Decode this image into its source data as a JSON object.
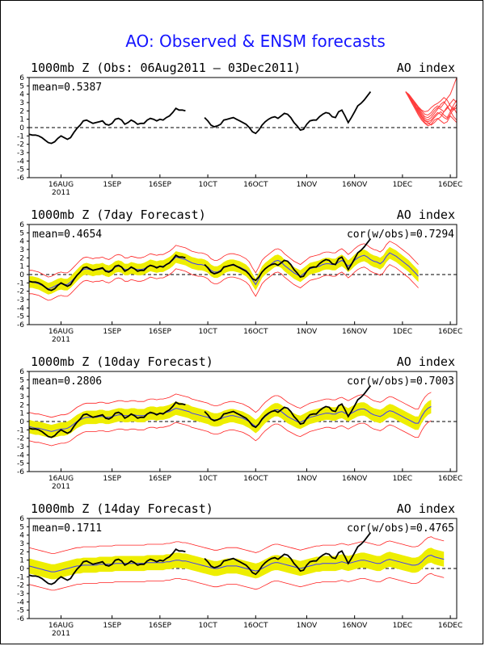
{
  "title": "AO: Observed & ENSM forecasts",
  "x_tick_labels": [
    "16AUG",
    "1SEP",
    "16SEP",
    "10CT",
    "16OCT",
    "1NOV",
    "16NOV",
    "1DEC",
    "16DEC"
  ],
  "year_label": "2011",
  "y_tick_labels": [
    "6",
    "5",
    "4",
    "3",
    "2",
    "1",
    "0",
    "-1",
    "-2",
    "-3",
    "-4",
    "-5",
    "-6"
  ],
  "chart_data": [
    {
      "type": "line",
      "header_left": "1000mb Z (Obs: 06Aug2011 – 03Dec2011)",
      "header_right": "AO index",
      "mean_label": "mean=0.5387",
      "corr_label": "",
      "ylim": [
        -6,
        6
      ],
      "x_day_range": [
        0,
        134
      ],
      "observed_day_start": 0,
      "observed": [
        -0.8,
        -0.9,
        -0.9,
        -1.0,
        -1.2,
        -1.5,
        -1.8,
        -1.9,
        -1.7,
        -1.3,
        -1.0,
        -1.2,
        -1.4,
        -1.2,
        -0.6,
        -0.1,
        0.3,
        0.8,
        0.9,
        0.7,
        0.5,
        0.6,
        0.7,
        0.8,
        0.4,
        0.3,
        0.5,
        1.0,
        1.1,
        0.9,
        0.4,
        0.6,
        0.9,
        0.7,
        0.4,
        0.5,
        0.5,
        0.9,
        1.1,
        1.0,
        0.8,
        1.0,
        0.9,
        1.2,
        1.4,
        1.8,
        2.3,
        2.1,
        2.1,
        2.0,
        null,
        null,
        null,
        null,
        null,
        1.2,
        0.8,
        0.3,
        0.1,
        0.2,
        0.4,
        0.9,
        1.0,
        1.1,
        1.2,
        1.0,
        0.8,
        0.6,
        0.4,
        0.0,
        -0.5,
        -0.7,
        -0.3,
        0.3,
        0.7,
        1.0,
        1.2,
        1.3,
        1.1,
        1.4,
        1.7,
        1.6,
        1.2,
        0.6,
        0.2,
        -0.3,
        -0.2,
        0.4,
        0.8,
        0.9,
        0.9,
        1.3,
        1.6,
        1.8,
        1.7,
        1.3,
        1.2,
        1.9,
        2.1,
        1.4,
        0.6,
        1.2,
        1.9,
        2.6,
        2.9,
        3.3,
        3.8,
        4.3,
        null,
        null,
        null,
        null,
        null,
        null,
        null,
        null,
        null,
        null,
        null,
        null,
        null,
        null,
        null,
        null,
        null,
        null,
        null,
        null,
        null,
        null,
        null,
        null,
        null,
        null,
        null
      ],
      "ensemble": {
        "day_start": 118,
        "color": "#ff3b3b",
        "members": [
          [
            4.3,
            3.9,
            3.4,
            2.8,
            2.4,
            2.0,
            1.6,
            1.5,
            1.8,
            2.3,
            2.6,
            2.4,
            2.9,
            3.5,
            4.0,
            5.0,
            6.0
          ],
          [
            4.3,
            3.7,
            3.0,
            2.6,
            2.2,
            1.6,
            1.1,
            0.9,
            1.2,
            1.7,
            2.2,
            2.8,
            3.1,
            2.6,
            2.0,
            2.7,
            3.3
          ],
          [
            4.3,
            3.8,
            3.1,
            2.4,
            1.7,
            1.1,
            0.6,
            0.4,
            0.7,
            1.2,
            1.6,
            1.9,
            1.5,
            1.2,
            1.9,
            2.4,
            1.7
          ],
          [
            4.3,
            3.6,
            2.9,
            2.2,
            1.5,
            0.9,
            0.5,
            0.2,
            0.4,
            0.9,
            1.1,
            0.8,
            0.5,
            0.7,
            1.4,
            1.0,
            0.6
          ],
          [
            4.3,
            4.0,
            3.5,
            3.0,
            2.5,
            2.1,
            1.9,
            2.0,
            2.4,
            2.7,
            2.9,
            3.2,
            3.6,
            3.3,
            2.6,
            2.1,
            2.4
          ],
          [
            4.3,
            3.8,
            3.2,
            2.7,
            2.0,
            1.4,
            0.9,
            0.7,
            0.9,
            1.4,
            1.8,
            1.6,
            1.2,
            1.0,
            1.6,
            2.2,
            2.8
          ],
          [
            4.3,
            3.7,
            3.1,
            2.5,
            1.9,
            1.3,
            0.8,
            0.6,
            0.3,
            0.6,
            1.0,
            1.3,
            1.9,
            2.5,
            2.0,
            1.3,
            0.9
          ],
          [
            4.3,
            3.9,
            3.3,
            2.9,
            2.3,
            1.8,
            1.3,
            1.2,
            1.5,
            2.0,
            2.4,
            2.2,
            1.9,
            2.3,
            2.9,
            3.4,
            3.0
          ]
        ]
      }
    },
    {
      "type": "line",
      "header_left": "1000mb Z (7day Forecast)",
      "header_right": "AO index",
      "mean_label": "mean=0.4654",
      "corr_label": "cor(w/obs)=0.7294",
      "ylim": [
        -6,
        6
      ],
      "band_color": "#eeee00",
      "forecast_mean": [
        -0.9,
        -0.9,
        -1.0,
        -1.1,
        -1.3,
        -1.5,
        -1.7,
        -1.6,
        -1.4,
        -1.2,
        -1.1,
        -1.2,
        -1.2,
        -0.9,
        -0.5,
        -0.1,
        0.3,
        0.6,
        0.7,
        0.6,
        0.5,
        0.6,
        0.6,
        0.7,
        0.5,
        0.4,
        0.6,
        0.9,
        1.0,
        0.9,
        0.6,
        0.6,
        0.8,
        0.7,
        0.6,
        0.6,
        0.7,
        0.9,
        1.1,
        1.0,
        0.9,
        1.0,
        1.0,
        1.2,
        1.4,
        1.7,
        2.1,
        2.0,
        1.9,
        1.8,
        1.6,
        1.4,
        1.3,
        1.2,
        1.2,
        1.1,
        0.9,
        0.5,
        0.3,
        0.3,
        0.5,
        0.8,
        1.0,
        1.1,
        1.1,
        1.0,
        0.9,
        0.7,
        0.5,
        0.1,
        -0.6,
        -1.2,
        -0.5,
        0.3,
        0.7,
        1.0,
        1.3,
        1.6,
        1.7,
        1.5,
        1.1,
        0.8,
        0.5,
        0.2,
        0.0,
        -0.2,
        0.1,
        0.4,
        0.7,
        0.8,
        0.9,
        1.0,
        1.2,
        1.3,
        1.3,
        1.2,
        1.2,
        1.5,
        1.7,
        1.4,
        1.0,
        1.3,
        1.7,
        2.0,
        2.2,
        2.3,
        2.1,
        1.8,
        1.6,
        1.5,
        1.3,
        1.6,
        2.2,
        2.6,
        2.4,
        2.2,
        1.9,
        1.6,
        1.3,
        1.0,
        0.6,
        0.2,
        -0.2,
        null,
        null,
        null,
        null,
        null,
        null,
        null,
        null,
        null,
        null,
        null,
        null
      ],
      "band_halfwidth": 0.7,
      "envelope_halfwidth": 1.4,
      "forecast_day_end": 122
    },
    {
      "type": "line",
      "header_left": "1000mb Z (10day Forecast)",
      "header_right": "AO index",
      "mean_label": "mean=0.2806",
      "corr_label": "cor(w/obs)=0.7003",
      "ylim": [
        -6,
        6
      ],
      "band_color": "#eeee00",
      "forecast_mean": [
        -0.6,
        -0.7,
        -0.8,
        -0.8,
        -0.9,
        -1.0,
        -1.1,
        -1.2,
        -1.1,
        -1.0,
        -0.9,
        -0.9,
        -0.8,
        -0.6,
        -0.3,
        0.0,
        0.2,
        0.4,
        0.5,
        0.5,
        0.5,
        0.5,
        0.6,
        0.6,
        0.5,
        0.5,
        0.6,
        0.7,
        0.8,
        0.8,
        0.7,
        0.7,
        0.8,
        0.8,
        0.7,
        0.7,
        0.7,
        0.9,
        1.0,
        1.0,
        0.9,
        1.0,
        1.0,
        1.1,
        1.2,
        1.4,
        1.6,
        1.5,
        1.4,
        1.3,
        1.2,
        1.0,
        0.9,
        0.8,
        0.7,
        0.6,
        0.5,
        0.3,
        0.2,
        0.2,
        0.3,
        0.5,
        0.6,
        0.7,
        0.7,
        0.6,
        0.5,
        0.4,
        0.2,
        0.0,
        -0.3,
        -0.6,
        -0.3,
        0.2,
        0.6,
        0.9,
        1.2,
        1.4,
        1.4,
        1.2,
        0.9,
        0.6,
        0.4,
        0.2,
        0.0,
        -0.1,
        0.1,
        0.3,
        0.5,
        0.6,
        0.7,
        0.8,
        0.9,
        1.0,
        1.0,
        0.9,
        0.9,
        1.1,
        1.2,
        1.0,
        0.8,
        1.0,
        1.2,
        1.4,
        1.5,
        1.5,
        1.3,
        1.0,
        0.8,
        0.7,
        0.6,
        0.8,
        1.1,
        1.3,
        1.2,
        1.0,
        0.8,
        0.6,
        0.4,
        0.2,
        0.0,
        -0.2,
        -0.2,
        0.6,
        1.2,
        1.6,
        1.8,
        null,
        null,
        null,
        null,
        null,
        null,
        null,
        null
      ],
      "band_halfwidth": 0.8,
      "envelope_halfwidth": 1.7,
      "forecast_day_end": 126
    },
    {
      "type": "line",
      "header_left": "1000mb Z (14day Forecast)",
      "header_right": "AO index",
      "mean_label": "mean=0.1711",
      "corr_label": "cor(w/obs)=0.4765",
      "ylim": [
        -6,
        6
      ],
      "band_color": "#eeee00",
      "forecast_mean": [
        0.3,
        0.2,
        0.1,
        0.0,
        -0.1,
        -0.2,
        -0.3,
        -0.4,
        -0.4,
        -0.3,
        -0.2,
        -0.1,
        0.0,
        0.1,
        0.2,
        0.3,
        0.3,
        0.4,
        0.4,
        0.4,
        0.4,
        0.4,
        0.5,
        0.5,
        0.5,
        0.5,
        0.5,
        0.6,
        0.6,
        0.6,
        0.6,
        0.6,
        0.6,
        0.6,
        0.6,
        0.6,
        0.6,
        0.7,
        0.7,
        0.7,
        0.7,
        0.7,
        0.7,
        0.8,
        0.8,
        0.9,
        1.0,
        1.0,
        0.9,
        0.9,
        0.8,
        0.7,
        0.6,
        0.5,
        0.4,
        0.3,
        0.2,
        0.1,
        0.0,
        0.0,
        0.1,
        0.2,
        0.3,
        0.3,
        0.3,
        0.3,
        0.2,
        0.1,
        0.0,
        -0.1,
        -0.2,
        -0.3,
        -0.2,
        0.0,
        0.2,
        0.4,
        0.6,
        0.7,
        0.7,
        0.6,
        0.5,
        0.4,
        0.3,
        0.2,
        0.1,
        0.0,
        0.1,
        0.2,
        0.3,
        0.4,
        0.5,
        0.5,
        0.6,
        0.6,
        0.6,
        0.6,
        0.6,
        0.7,
        0.8,
        0.7,
        0.6,
        0.7,
        0.8,
        0.9,
        1.0,
        1.0,
        0.9,
        0.8,
        0.7,
        0.6,
        0.6,
        0.8,
        1.0,
        1.1,
        1.0,
        0.9,
        0.8,
        0.7,
        0.6,
        0.5,
        0.4,
        0.4,
        0.5,
        0.8,
        1.2,
        1.5,
        1.6,
        1.4,
        1.3,
        1.2,
        1.1,
        null,
        null,
        null,
        null
      ],
      "band_halfwidth": 0.9,
      "envelope_halfwidth": 2.2,
      "forecast_day_end": 130
    }
  ]
}
